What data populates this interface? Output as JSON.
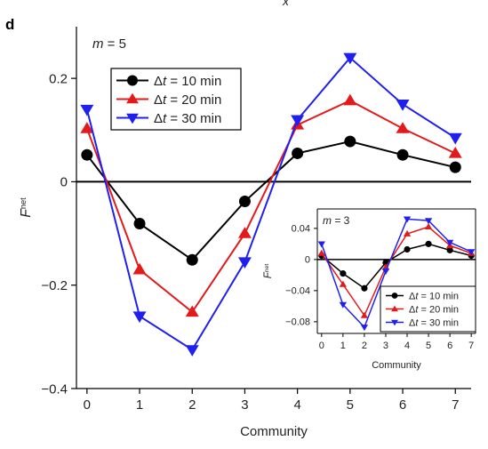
{
  "panel_label": "d",
  "top_cut_label": "x",
  "colors": {
    "10": "#000000",
    "20": "#e31a1c",
    "30": "#2020ee",
    "axis": "#000000"
  },
  "chart_data": [
    {
      "type": "line",
      "annotation": "m = 5",
      "xlabel": "Community",
      "ylabel": "F",
      "ylabel_sup": "net",
      "xlim": [
        -0.2,
        7.3
      ],
      "ylim": [
        -0.4,
        0.3
      ],
      "xticks": [
        0,
        1,
        2,
        3,
        4,
        5,
        6,
        7
      ],
      "yticks": [
        0.2,
        0,
        -0.2,
        -0.4
      ],
      "ytick_labels": [
        "0.2",
        "0",
        "−0.2",
        "−0.4"
      ],
      "x": [
        0,
        1,
        2,
        3,
        4,
        5,
        6,
        7
      ],
      "legend_placement": "top-left",
      "series": [
        {
          "name": "Δt = 10 min",
          "marker": "circle",
          "color": "#000000",
          "values": [
            0.052,
            -0.081,
            -0.151,
            -0.038,
            0.055,
            0.078,
            0.052,
            0.028
          ]
        },
        {
          "name": "Δt = 20 min",
          "marker": "triangle-up",
          "color": "#e31a1c",
          "values": [
            0.103,
            -0.17,
            -0.252,
            -0.1,
            0.11,
            0.157,
            0.103,
            0.055
          ]
        },
        {
          "name": "Δt = 30 min",
          "marker": "triangle-down",
          "color": "#2020ee",
          "values": [
            0.14,
            -0.26,
            -0.325,
            -0.155,
            0.12,
            0.24,
            0.15,
            0.085
          ]
        }
      ]
    },
    {
      "type": "line",
      "annotation": "m = 3",
      "xlabel": "Community",
      "ylabel": "F",
      "ylabel_sup": "net",
      "xlim": [
        -0.2,
        7.2
      ],
      "ylim": [
        -0.095,
        0.065
      ],
      "xticks": [
        0,
        1,
        2,
        3,
        4,
        5,
        6,
        7
      ],
      "yticks": [
        0.04,
        0,
        -0.04,
        -0.08
      ],
      "ytick_labels": [
        "0.04",
        "0",
        "−0.04",
        "−0.08"
      ],
      "x": [
        0,
        1,
        2,
        3,
        4,
        5,
        6,
        7
      ],
      "legend_placement": "bottom-right",
      "series": [
        {
          "name": "Δt = 10 min",
          "marker": "circle",
          "color": "#000000",
          "values": [
            0.005,
            -0.018,
            -0.037,
            -0.004,
            0.013,
            0.02,
            0.012,
            0.005
          ]
        },
        {
          "name": "Δt = 20 min",
          "marker": "triangle-up",
          "color": "#e31a1c",
          "values": [
            0.008,
            -0.032,
            -0.072,
            -0.01,
            0.033,
            0.042,
            0.018,
            0.008
          ]
        },
        {
          "name": "Δt = 30 min",
          "marker": "triangle-down",
          "color": "#2020ee",
          "values": [
            0.02,
            -0.058,
            -0.087,
            -0.015,
            0.052,
            0.05,
            0.022,
            0.01
          ]
        }
      ]
    }
  ]
}
